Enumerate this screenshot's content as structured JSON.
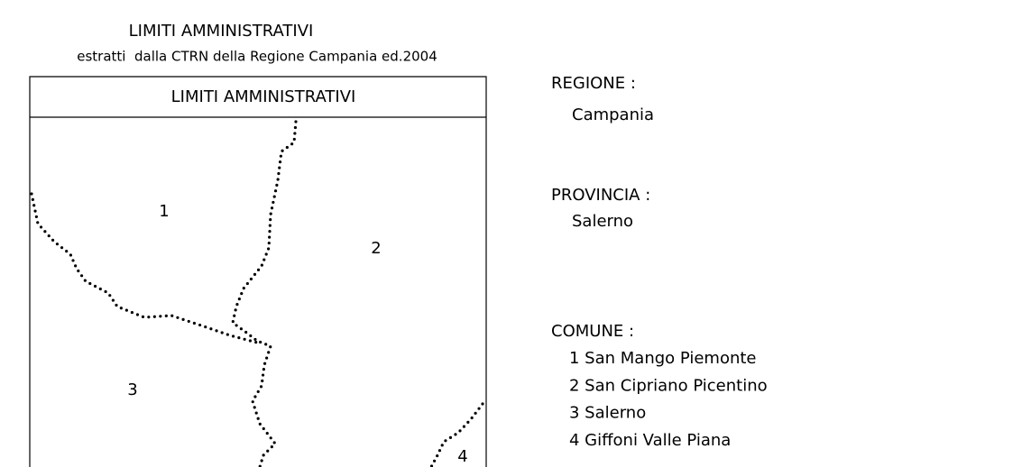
{
  "header": {
    "title": "LIMITI AMMINISTRATIVI",
    "subtitle": "estratti  dalla CTRN della Regione Campania ed.2004"
  },
  "map": {
    "header": "LIMITI AMMINISTRATIVI",
    "labels": [
      "1",
      "2",
      "3",
      "4"
    ]
  },
  "legend": {
    "regione": {
      "label": "REGIONE :",
      "value": "Campania"
    },
    "provincia": {
      "label": "PROVINCIA :",
      "value": "Salerno"
    },
    "comune": {
      "label": "COMUNE :",
      "items": [
        "1 San Mango Piemonte",
        "2 San Cipriano Picentino",
        "3 Salerno",
        "4 Giffoni Valle Piana"
      ]
    }
  }
}
